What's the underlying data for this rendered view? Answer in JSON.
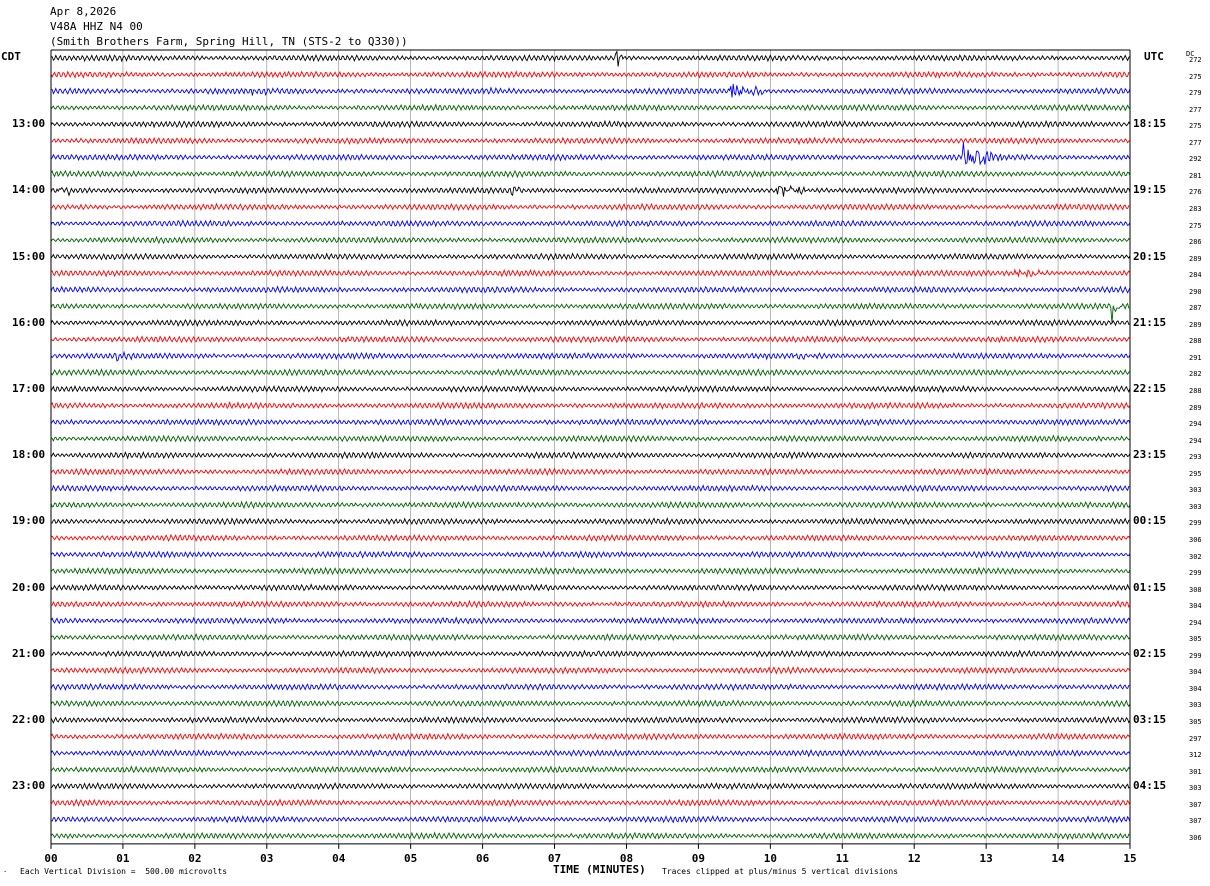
{
  "header": {
    "date": "Apr 8,2026",
    "station": "V48A HHZ N4 00",
    "location": "(Smith Brothers Farm, Spring Hill, TN (STS-2 to Q330))"
  },
  "left_zone": "CDT",
  "right_zone": "UTC",
  "dc_header": "DC",
  "footer": {
    "scale_note": "Each Vertical Division =  500.00 microvolts",
    "xlabel": "TIME (MINUTES)",
    "clip_note": "Traces clipped at plus/minus 5 vertical divisions"
  },
  "colors": {
    "trace_cycle": [
      "#000000",
      "#ff0000",
      "#0000ff",
      "#006400"
    ],
    "grid": "#000000"
  },
  "chart_data": {
    "type": "line",
    "xlim": [
      0,
      15
    ],
    "x_tick_labels": [
      "00",
      "01",
      "02",
      "03",
      "04",
      "05",
      "06",
      "07",
      "08",
      "09",
      "10",
      "11",
      "12",
      "13",
      "14",
      "15"
    ],
    "left_hour_labels": [
      "13:00",
      "14:00",
      "15:00",
      "16:00",
      "17:00",
      "18:00",
      "19:00",
      "20:00",
      "21:00",
      "22:00",
      "23:00"
    ],
    "right_hour_labels": [
      "18:15",
      "19:15",
      "20:15",
      "21:15",
      "22:15",
      "23:15",
      "00:15",
      "01:15",
      "02:15",
      "03:15",
      "04:15"
    ],
    "dc_values": [
      "272",
      "275",
      "279",
      "277",
      "275",
      "277",
      "292",
      "281",
      "276",
      "283",
      "275",
      "286",
      "289",
      "284",
      "290",
      "287",
      "289",
      "288",
      "291",
      "282",
      "288",
      "289",
      "294",
      "294",
      "293",
      "295",
      "303",
      "303",
      "299",
      "306",
      "302",
      "299",
      "308",
      "304",
      "294",
      "305",
      "299",
      "304",
      "304",
      "303",
      "305",
      "297",
      "312",
      "301",
      "303",
      "307",
      "307",
      "306"
    ],
    "events": [
      {
        "trace": 0,
        "minute": 7.85,
        "amplitude": 3.0,
        "duration": 0.15
      },
      {
        "trace": 2,
        "minute": 2.8,
        "amplitude": 0.7,
        "duration": 0.6
      },
      {
        "trace": 2,
        "minute": 6.0,
        "amplitude": 0.6,
        "duration": 0.3
      },
      {
        "trace": 2,
        "minute": 9.45,
        "amplitude": 2.2,
        "duration": 0.6
      },
      {
        "trace": 6,
        "minute": 12.65,
        "amplitude": 4.0,
        "duration": 0.6
      },
      {
        "trace": 8,
        "minute": 0.1,
        "amplitude": 1.2,
        "duration": 0.35
      },
      {
        "trace": 8,
        "minute": 6.4,
        "amplitude": 0.9,
        "duration": 0.3
      },
      {
        "trace": 8,
        "minute": 10.1,
        "amplitude": 2.0,
        "duration": 0.5
      },
      {
        "trace": 13,
        "minute": 13.4,
        "amplitude": 1.2,
        "duration": 0.6
      },
      {
        "trace": 15,
        "minute": 14.75,
        "amplitude": 5.0,
        "duration": 0.15
      },
      {
        "trace": 18,
        "minute": 0.9,
        "amplitude": 1.0,
        "duration": 0.3
      },
      {
        "trace": 18,
        "minute": 10.3,
        "amplitude": 0.8,
        "duration": 0.4
      }
    ]
  }
}
